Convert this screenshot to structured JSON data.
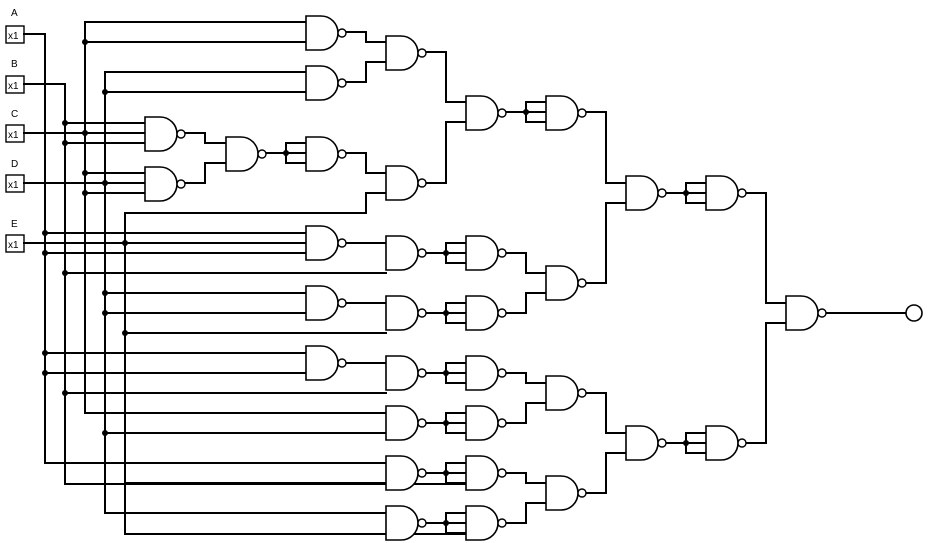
{
  "diagram": {
    "type": "logic-circuit",
    "inputs": [
      {
        "name": "A",
        "box_label": "x1"
      },
      {
        "name": "B",
        "box_label": "x1"
      },
      {
        "name": "C",
        "box_label": "x1"
      },
      {
        "name": "D",
        "box_label": "x1"
      },
      {
        "name": "E",
        "box_label": "x1"
      }
    ],
    "gate_type": "nand",
    "gate_count": 31,
    "output_count": 1
  }
}
